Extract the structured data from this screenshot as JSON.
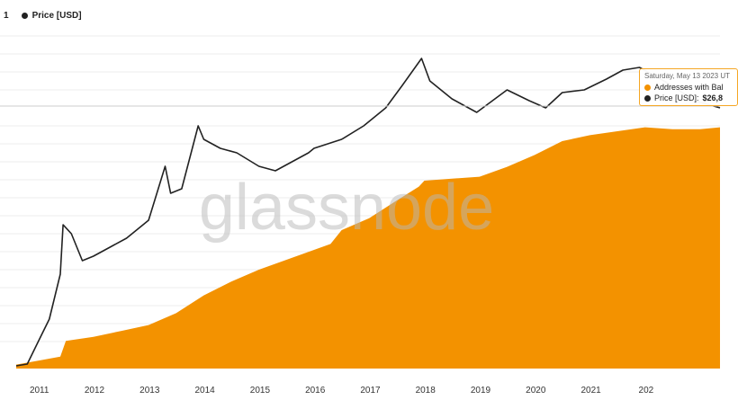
{
  "legend": {
    "left_fragment": "1",
    "price_label": "Price [USD]"
  },
  "watermark": "glassnode",
  "tooltip": {
    "date": "Saturday, May 13 2023 UT",
    "series1_label": "Addresses with Bal",
    "series2_label": "Price [USD]:",
    "series2_value": "$26,8"
  },
  "colors": {
    "area": "#f39200",
    "price_line": "#222222",
    "grid": "#eeeeee",
    "crosshair": "#cccccc",
    "tooltip_border": "#f5a623"
  },
  "chart_data": {
    "type": "area",
    "x_tick_labels": [
      "2011",
      "2012",
      "2013",
      "2014",
      "2015",
      "2016",
      "2017",
      "2018",
      "2019",
      "2020",
      "2021",
      "202"
    ],
    "grid": true,
    "legend_position": "top-left",
    "series": [
      {
        "kind": "area",
        "x": [
          2010.6,
          2011.0,
          2011.4,
          2011.5,
          2012.0,
          2012.5,
          2013.0,
          2013.5,
          2014.0,
          2014.5,
          2015.0,
          2015.5,
          2016.0,
          2016.3,
          2016.5,
          2017.0,
          2017.5,
          2017.9,
          2018.0,
          2018.5,
          2019.0,
          2019.5,
          2020.0,
          2020.5,
          2021.0,
          2021.5,
          2022.0,
          2022.5,
          2023.0,
          2023.36
        ],
        "value_index": [
          2,
          4,
          6,
          14,
          16,
          19,
          22,
          28,
          37,
          44,
          50,
          55,
          60,
          63,
          70,
          76,
          85,
          92,
          95,
          96,
          97,
          102,
          108,
          115,
          118,
          120,
          122,
          121,
          121,
          122
        ]
      },
      {
        "kind": "line",
        "name": "Price [USD]",
        "x": [
          2010.6,
          2010.8,
          2011.0,
          2011.2,
          2011.4,
          2011.45,
          2011.6,
          2011.8,
          2012.0,
          2012.3,
          2012.6,
          2012.9,
          2013.0,
          2013.3,
          2013.4,
          2013.6,
          2013.9,
          2014.0,
          2014.3,
          2014.6,
          2015.0,
          2015.3,
          2015.6,
          2015.9,
          2016.0,
          2016.5,
          2016.9,
          2017.3,
          2017.6,
          2017.95,
          2018.1,
          2018.5,
          2018.95,
          2019.5,
          2019.9,
          2020.2,
          2020.5,
          2020.9,
          2021.3,
          2021.6,
          2021.9,
          2022.4,
          2022.9,
          2023.36
        ],
        "value_index": [
          3,
          5,
          30,
          55,
          105,
          160,
          150,
          120,
          125,
          135,
          145,
          160,
          165,
          225,
          195,
          200,
          270,
          255,
          245,
          240,
          225,
          220,
          230,
          240,
          245,
          255,
          270,
          290,
          315,
          345,
          320,
          300,
          285,
          310,
          298,
          290,
          307,
          310,
          322,
          332,
          335,
          318,
          298,
          290
        ]
      }
    ]
  }
}
